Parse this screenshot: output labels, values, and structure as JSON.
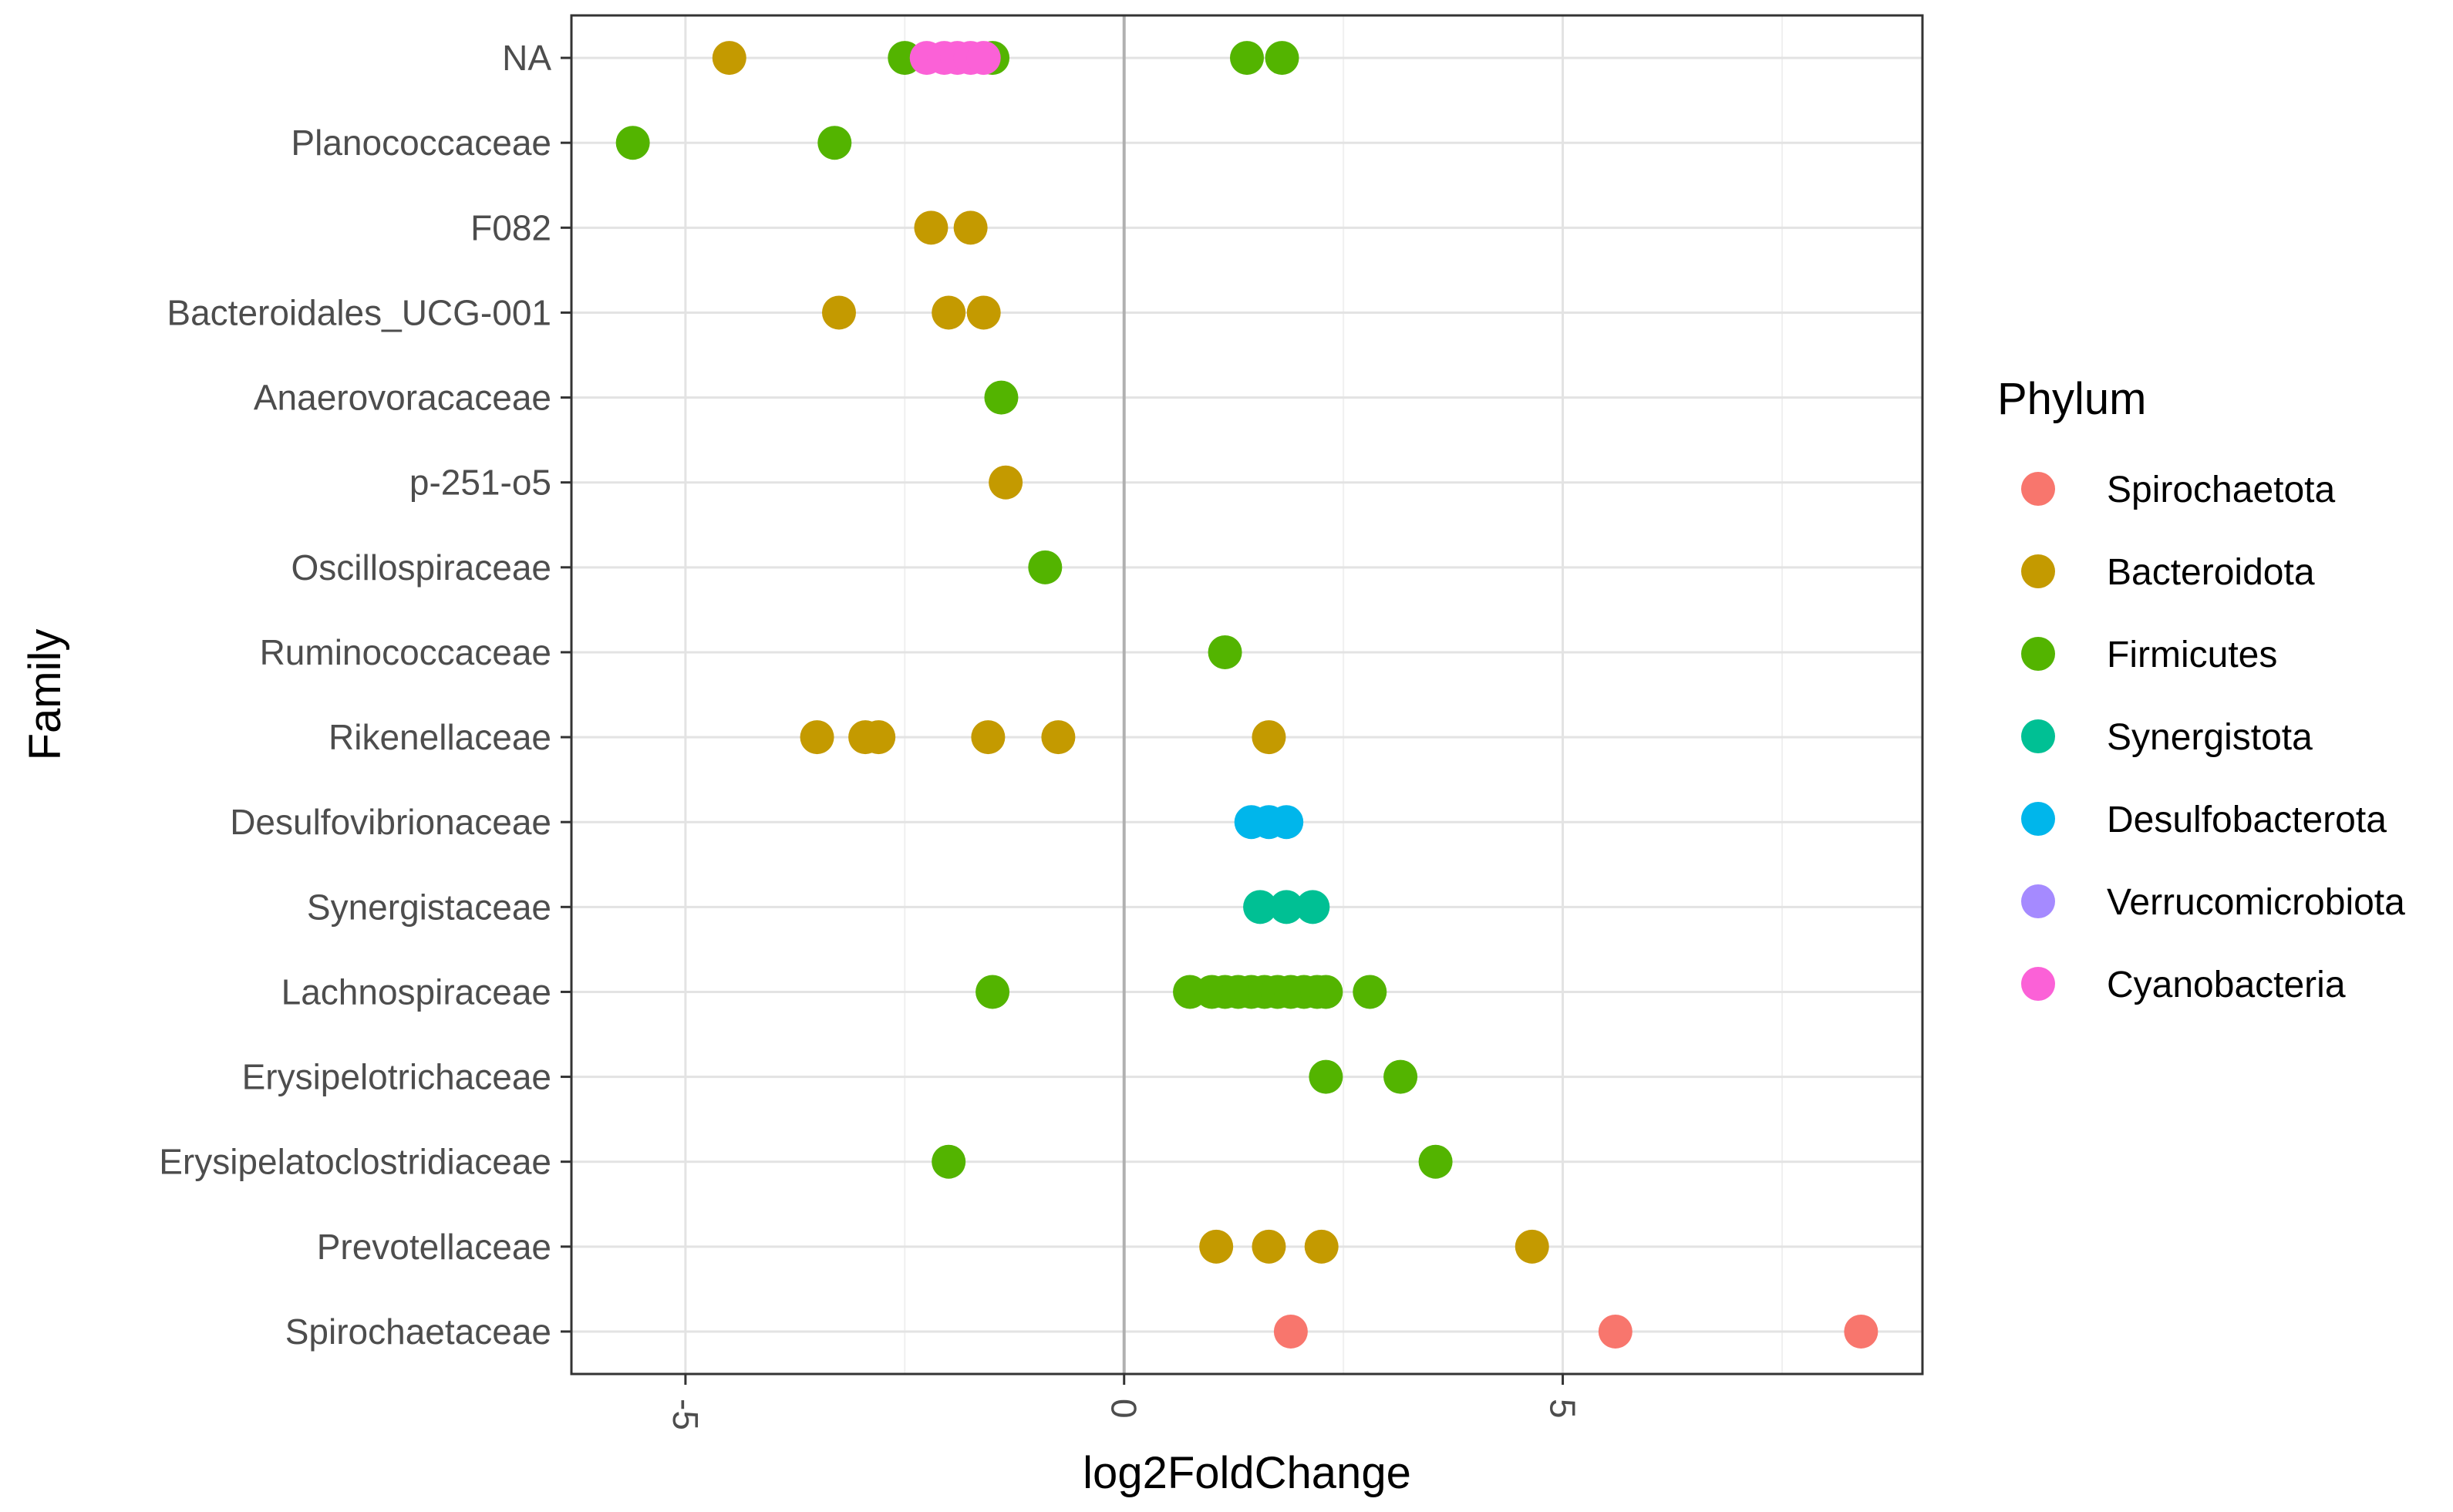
{
  "chart_data": {
    "type": "scatter",
    "xlabel": "log2FoldChange",
    "ylabel": "Family",
    "xlim": [
      -6.3,
      9.1
    ],
    "x_ticks": [
      {
        "value": -5,
        "label": "-5"
      },
      {
        "value": 0,
        "label": "0"
      },
      {
        "value": 5,
        "label": "5"
      }
    ],
    "x_tick_rotation": "90 degrees",
    "grid": true,
    "categories": [
      "NA",
      "Planococcaceae",
      "F082",
      "Bacteroidales_UCG-001",
      "Anaerovoracaceae",
      "p-251-o5",
      "Oscillospiraceae",
      "Ruminococcaceae",
      "Rikenellaceae",
      "Desulfovibrionaceae",
      "Synergistaceae",
      "Lachnospiraceae",
      "Erysipelotrichaceae",
      "Erysipelatoclostridiaceae",
      "Prevotellaceae",
      "Spirochaetaceae"
    ],
    "legend": {
      "title": "Phylum",
      "placement": "right",
      "entries": [
        {
          "label": "Spirochaetota",
          "color": "#F8766D"
        },
        {
          "label": "Bacteroidota",
          "color": "#C49A00"
        },
        {
          "label": "Firmicutes",
          "color": "#53B400"
        },
        {
          "label": "Synergistota",
          "color": "#00C094"
        },
        {
          "label": "Desulfobacterota",
          "color": "#00B6EB"
        },
        {
          "label": "Verrucomicrobiota",
          "color": "#A58AFF"
        },
        {
          "label": "Cyanobacteria",
          "color": "#FB61D7"
        }
      ]
    },
    "series": [
      {
        "name": "Spirochaetota",
        "color": "#F8766D",
        "points": [
          {
            "x": 1.9,
            "y": "Spirochaetaceae"
          },
          {
            "x": 5.6,
            "y": "Spirochaetaceae"
          },
          {
            "x": 8.4,
            "y": "Spirochaetaceae"
          }
        ]
      },
      {
        "name": "Bacteroidota",
        "color": "#C49A00",
        "points": [
          {
            "x": -4.5,
            "y": "NA"
          },
          {
            "x": -2.2,
            "y": "F082"
          },
          {
            "x": -1.75,
            "y": "F082"
          },
          {
            "x": -3.25,
            "y": "Bacteroidales_UCG-001"
          },
          {
            "x": -2.0,
            "y": "Bacteroidales_UCG-001"
          },
          {
            "x": -1.6,
            "y": "Bacteroidales_UCG-001"
          },
          {
            "x": -1.35,
            "y": "p-251-o5"
          },
          {
            "x": -3.5,
            "y": "Rikenellaceae"
          },
          {
            "x": -2.95,
            "y": "Rikenellaceae"
          },
          {
            "x": -2.8,
            "y": "Rikenellaceae"
          },
          {
            "x": -1.55,
            "y": "Rikenellaceae"
          },
          {
            "x": -0.75,
            "y": "Rikenellaceae"
          },
          {
            "x": 1.65,
            "y": "Rikenellaceae"
          },
          {
            "x": 1.05,
            "y": "Prevotellaceae"
          },
          {
            "x": 1.65,
            "y": "Prevotellaceae"
          },
          {
            "x": 2.25,
            "y": "Prevotellaceae"
          },
          {
            "x": 4.65,
            "y": "Prevotellaceae"
          }
        ]
      },
      {
        "name": "Firmicutes",
        "color": "#53B400",
        "points": [
          {
            "x": -2.5,
            "y": "NA"
          },
          {
            "x": -1.5,
            "y": "NA"
          },
          {
            "x": 1.4,
            "y": "NA"
          },
          {
            "x": 1.8,
            "y": "NA"
          },
          {
            "x": -5.6,
            "y": "Planococcaceae"
          },
          {
            "x": -3.3,
            "y": "Planococcaceae"
          },
          {
            "x": -1.4,
            "y": "Anaerovoracaceae"
          },
          {
            "x": -0.9,
            "y": "Oscillospiraceae"
          },
          {
            "x": 1.15,
            "y": "Ruminococcaceae"
          },
          {
            "x": -1.5,
            "y": "Lachnospiraceae"
          },
          {
            "x": 0.75,
            "y": "Lachnospiraceae"
          },
          {
            "x": 1.0,
            "y": "Lachnospiraceae"
          },
          {
            "x": 1.15,
            "y": "Lachnospiraceae"
          },
          {
            "x": 1.3,
            "y": "Lachnospiraceae"
          },
          {
            "x": 1.45,
            "y": "Lachnospiraceae"
          },
          {
            "x": 1.6,
            "y": "Lachnospiraceae"
          },
          {
            "x": 1.75,
            "y": "Lachnospiraceae"
          },
          {
            "x": 1.9,
            "y": "Lachnospiraceae"
          },
          {
            "x": 2.05,
            "y": "Lachnospiraceae"
          },
          {
            "x": 2.2,
            "y": "Lachnospiraceae"
          },
          {
            "x": 2.3,
            "y": "Lachnospiraceae"
          },
          {
            "x": 2.8,
            "y": "Lachnospiraceae"
          },
          {
            "x": 2.3,
            "y": "Erysipelotrichaceae"
          },
          {
            "x": 3.15,
            "y": "Erysipelotrichaceae"
          },
          {
            "x": -2.0,
            "y": "Erysipelatoclostridiaceae"
          },
          {
            "x": 3.55,
            "y": "Erysipelatoclostridiaceae"
          }
        ]
      },
      {
        "name": "Synergistota",
        "color": "#00C094",
        "points": [
          {
            "x": 1.55,
            "y": "Synergistaceae"
          },
          {
            "x": 1.85,
            "y": "Synergistaceae"
          },
          {
            "x": 2.15,
            "y": "Synergistaceae"
          }
        ]
      },
      {
        "name": "Desulfobacterota",
        "color": "#00B6EB",
        "points": [
          {
            "x": 1.45,
            "y": "Desulfovibrionaceae"
          },
          {
            "x": 1.65,
            "y": "Desulfovibrionaceae"
          },
          {
            "x": 1.85,
            "y": "Desulfovibrionaceae"
          }
        ]
      },
      {
        "name": "Cyanobacteria",
        "color": "#FB61D7",
        "points": [
          {
            "x": -2.25,
            "y": "NA"
          },
          {
            "x": -2.05,
            "y": "NA"
          },
          {
            "x": -1.9,
            "y": "NA"
          },
          {
            "x": -1.75,
            "y": "NA"
          },
          {
            "x": -1.6,
            "y": "NA"
          }
        ]
      }
    ]
  }
}
